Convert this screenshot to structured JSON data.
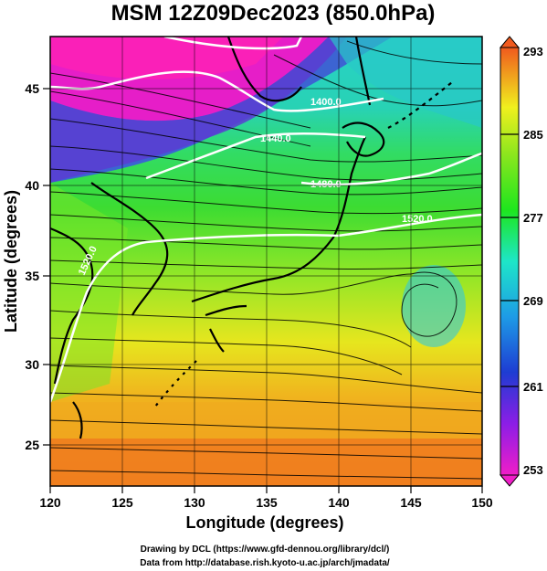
{
  "title": "MSM 12Z09Dec2023 (850.0hPa)",
  "x_axis_label": "Longitude (degrees)",
  "y_axis_label": "Latitude  (degrees)",
  "x_ticks": [
    "120",
    "125",
    "130",
    "135",
    "140",
    "145",
    "150"
  ],
  "y_ticks": [
    "45",
    "40",
    "35",
    "30",
    "25"
  ],
  "colorbar_ticks": [
    "293",
    "285",
    "277",
    "269",
    "261",
    "253"
  ],
  "contour_labels": [
    "1400.0",
    "1440.0",
    "1480.0",
    "1520.0",
    "1520.0"
  ],
  "credit_line1": "Drawing by DCL (https://www.gfd-dennou.org/library/dcl/)",
  "credit_line2": "Data from http://database.rish.kyoto-u.ac.jp/arch/jmadata/",
  "map": {
    "x_range": [
      120,
      150
    ],
    "y_range": [
      22.4,
      47.6
    ],
    "colorbar_range": [
      253,
      293
    ],
    "colors": {
      "warm": "#f08a1e",
      "yellow": "#e8e81e",
      "green": "#3cdc3c",
      "cyan": "#28d7c8",
      "blue": "#3c5ad2",
      "magenta": "#e61ec8",
      "contour": "#ffffff"
    }
  }
}
